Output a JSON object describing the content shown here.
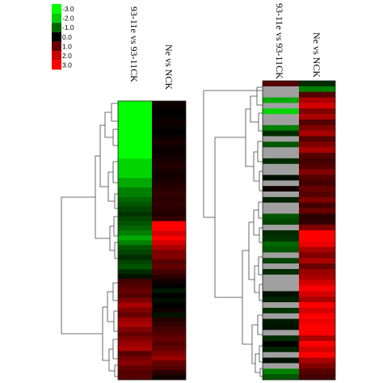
{
  "chart_data": [
    {
      "type": "heatmap",
      "columns": [
        "93-11e vs 93-11CK",
        "Ne vs NCK"
      ],
      "color_scale": {
        "ticks": [
          "-3.0",
          "-2.0",
          "-1.0",
          "0.0",
          "1.0",
          "2.0",
          "3.0"
        ],
        "colors": [
          "#00ff00",
          "#00cc00",
          "#006600",
          "#000000",
          "#660000",
          "#cc0000",
          "#ff0000"
        ],
        "missing_color": "#a0a0a0"
      },
      "dendrogram": "left",
      "rows": [
        [
          -3.0,
          0.2
        ],
        [
          -3.0,
          0.1
        ],
        [
          -3.0,
          0.0
        ],
        [
          -3.0,
          0.1
        ],
        [
          -3.0,
          0.2
        ],
        [
          -3.0,
          0.1
        ],
        [
          -3.0,
          0.0
        ],
        [
          -3.0,
          0.1
        ],
        [
          -3.0,
          0.3
        ],
        [
          -3.0,
          0.2
        ],
        [
          -3.0,
          0.1
        ],
        [
          -3.0,
          0.2
        ],
        [
          -2.5,
          0.3
        ],
        [
          -2.5,
          0.4
        ],
        [
          -2.5,
          0.3
        ],
        [
          -2.5,
          0.2
        ],
        [
          -2.0,
          0.3
        ],
        [
          -2.0,
          0.4
        ],
        [
          -1.5,
          0.5
        ],
        [
          -1.5,
          0.6
        ],
        [
          -1.2,
          0.5
        ],
        [
          -1.0,
          0.6
        ],
        [
          -0.8,
          0.5
        ],
        [
          -0.6,
          0.4
        ],
        [
          -0.8,
          0.6
        ],
        [
          -1.0,
          3.0
        ],
        [
          -1.2,
          3.0
        ],
        [
          -1.5,
          2.5
        ],
        [
          -2.0,
          3.0
        ],
        [
          -1.5,
          2.5
        ],
        [
          -1.0,
          2.0
        ],
        [
          -0.8,
          1.5
        ],
        [
          -0.5,
          1.5
        ],
        [
          -0.8,
          1.0
        ],
        [
          -1.0,
          1.2
        ],
        [
          -0.5,
          0.8
        ],
        [
          -0.2,
          0.5
        ],
        [
          0.8,
          0.2
        ],
        [
          1.0,
          0.0
        ],
        [
          1.2,
          -0.3
        ],
        [
          1.0,
          0.0
        ],
        [
          1.5,
          -0.2
        ],
        [
          2.0,
          0.0
        ],
        [
          1.5,
          0.2
        ],
        [
          1.2,
          -0.2
        ],
        [
          1.8,
          0.4
        ],
        [
          2.0,
          0.6
        ],
        [
          1.5,
          0.8
        ],
        [
          1.2,
          1.0
        ],
        [
          1.5,
          1.2
        ],
        [
          1.8,
          1.0
        ],
        [
          2.0,
          1.2
        ],
        [
          1.0,
          1.5
        ],
        [
          1.4,
          1.8
        ],
        [
          1.6,
          1.2
        ],
        [
          1.2,
          1.0
        ],
        [
          1.0,
          0.5
        ],
        [
          1.0,
          0.2
        ]
      ]
    },
    {
      "type": "heatmap",
      "columns": [
        "93-11e vs 93-11CK",
        "Ne vs NCK"
      ],
      "dendrogram": "left",
      "rows": [
        [
          1.0,
          -0.5
        ],
        [
          null,
          -1.5
        ],
        [
          null,
          1.0
        ],
        [
          -2.0,
          2.0
        ],
        [
          null,
          2.5
        ],
        [
          -2.5,
          1.5
        ],
        [
          null,
          2.0
        ],
        [
          null,
          1.0
        ],
        [
          -1.5,
          1.5
        ],
        [
          -0.5,
          2.0
        ],
        [
          null,
          1.0
        ],
        [
          -1.0,
          1.5
        ],
        [
          null,
          2.0
        ],
        [
          null,
          1.0
        ],
        [
          -0.5,
          0.8
        ],
        [
          null,
          1.0
        ],
        [
          null,
          1.5
        ],
        [
          -0.2,
          1.0
        ],
        [
          null,
          0.8
        ],
        [
          0.2,
          1.2
        ],
        [
          null,
          1.0
        ],
        [
          -0.4,
          1.5
        ],
        [
          null,
          0.8
        ],
        [
          null,
          1.2
        ],
        [
          -1.0,
          0.5
        ],
        [
          -0.8,
          0.6
        ],
        [
          null,
          1.5
        ],
        [
          -0.5,
          3.0
        ],
        [
          -0.6,
          3.0
        ],
        [
          -1.2,
          2.8
        ],
        [
          -1.0,
          2.0
        ],
        [
          null,
          1.5
        ],
        [
          -0.8,
          2.0
        ],
        [
          null,
          1.2
        ],
        [
          -0.5,
          1.8
        ],
        [
          null,
          2.0
        ],
        [
          null,
          2.5
        ],
        [
          null,
          3.0
        ],
        [
          -0.2,
          2.5
        ],
        [
          -0.4,
          2.0
        ],
        [
          null,
          3.0
        ],
        [
          -0.6,
          2.5
        ],
        [
          null,
          3.0
        ],
        [
          -0.3,
          2.8
        ],
        [
          -0.2,
          3.0
        ],
        [
          null,
          3.0
        ],
        [
          -0.5,
          2.0
        ],
        [
          0.0,
          3.0
        ],
        [
          -0.4,
          2.5
        ],
        [
          null,
          3.0
        ],
        [
          -0.2,
          2.0
        ],
        [
          null,
          1.5
        ],
        [
          -1.5,
          1.0
        ],
        [
          -1.0,
          0.8
        ]
      ]
    }
  ]
}
